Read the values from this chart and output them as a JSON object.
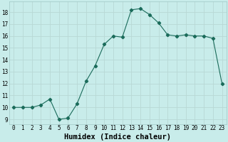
{
  "x": [
    0,
    1,
    2,
    3,
    4,
    5,
    6,
    7,
    8,
    9,
    10,
    11,
    12,
    13,
    14,
    15,
    16,
    17,
    18,
    19,
    20,
    21,
    22,
    23
  ],
  "y": [
    10,
    10,
    10,
    10.2,
    10.7,
    9.0,
    9.1,
    10.3,
    12.2,
    13.5,
    15.3,
    16.0,
    15.9,
    18.2,
    18.3,
    17.8,
    17.1,
    16.1,
    16.0,
    16.1,
    16.0,
    16.0,
    15.8,
    12.0
  ],
  "line_color": "#1a6b5a",
  "marker": "D",
  "marker_size": 2.2,
  "bg_color": "#c8ecea",
  "grid_color": "#b8d8d5",
  "xlabel": "Humidex (Indice chaleur)",
  "ylabel_ticks": [
    9,
    10,
    11,
    12,
    13,
    14,
    15,
    16,
    17,
    18
  ],
  "ylim": [
    8.6,
    18.9
  ],
  "xlim": [
    -0.5,
    23.5
  ],
  "tick_fontsize": 5.5,
  "label_fontsize": 7.5
}
